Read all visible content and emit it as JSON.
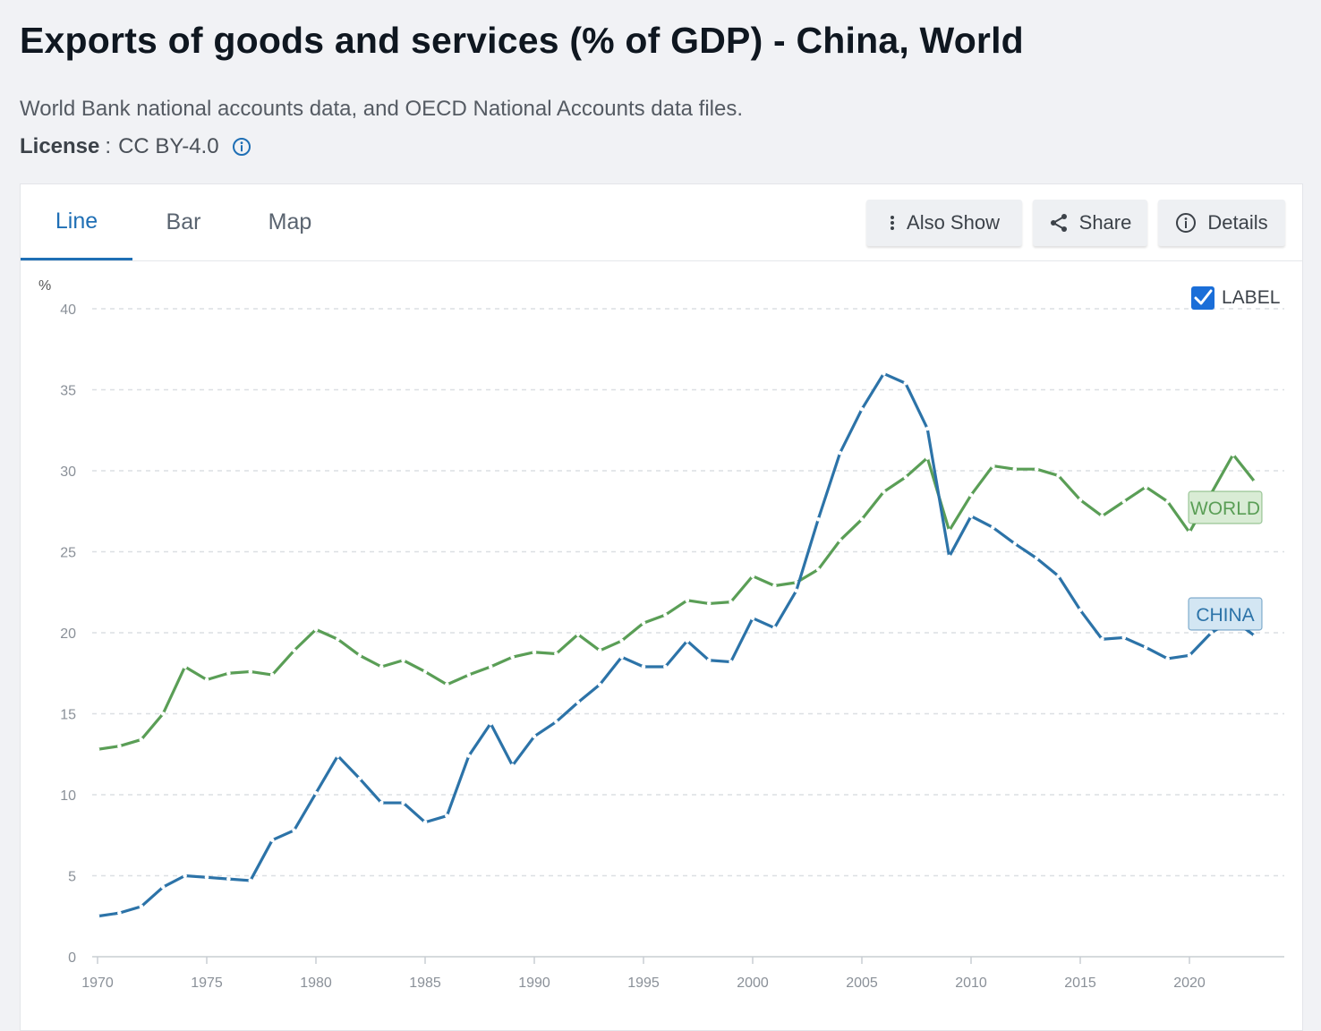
{
  "header": {
    "title": "Exports of goods and services (% of GDP) - China, World",
    "source": "World Bank national accounts data, and OECD National Accounts data files.",
    "license_key": "License",
    "license_sep": ":",
    "license_value": "CC BY-4.0"
  },
  "tabs": [
    {
      "label": "Line",
      "active": true
    },
    {
      "label": "Bar",
      "active": false
    },
    {
      "label": "Map",
      "active": false
    }
  ],
  "toolbar": {
    "also_show": "Also Show",
    "share": "Share",
    "details": "Details"
  },
  "label_toggle": {
    "text": "LABEL",
    "checked": true
  },
  "chart_data": {
    "type": "line",
    "ylabel": "%",
    "ylim": [
      0,
      40
    ],
    "yticks": [
      0,
      5,
      10,
      15,
      20,
      25,
      30,
      35,
      40
    ],
    "xticks": [
      1970,
      1975,
      1980,
      1985,
      1990,
      1995,
      2000,
      2005,
      2010,
      2015,
      2020
    ],
    "grid": "horizontal dashed",
    "x": [
      1970,
      1971,
      1972,
      1973,
      1974,
      1975,
      1976,
      1977,
      1978,
      1979,
      1980,
      1981,
      1982,
      1983,
      1984,
      1985,
      1986,
      1987,
      1988,
      1989,
      1990,
      1991,
      1992,
      1993,
      1994,
      1995,
      1996,
      1997,
      1998,
      1999,
      2000,
      2001,
      2002,
      2003,
      2004,
      2005,
      2006,
      2007,
      2008,
      2009,
      2010,
      2011,
      2012,
      2013,
      2014,
      2015,
      2016,
      2017,
      2018,
      2019,
      2020,
      2021,
      2022,
      2023
    ],
    "series": [
      {
        "name": "CHINA",
        "color": "#2c73a8",
        "tag_fill": "#d3e6f3",
        "values": [
          2.5,
          2.7,
          3.1,
          4.3,
          5.0,
          4.9,
          4.8,
          4.7,
          7.2,
          7.8,
          10.1,
          12.4,
          11.0,
          9.5,
          9.5,
          8.3,
          8.7,
          12.4,
          14.4,
          11.8,
          13.6,
          14.5,
          15.7,
          16.8,
          18.5,
          17.9,
          17.9,
          19.5,
          18.3,
          18.2,
          20.9,
          20.3,
          22.6,
          27.0,
          31.1,
          33.8,
          36.0,
          35.4,
          32.6,
          24.7,
          27.2,
          26.5,
          25.5,
          24.6,
          23.5,
          21.4,
          19.6,
          19.7,
          19.1,
          18.4,
          18.6,
          20.0,
          20.8,
          19.8
        ]
      },
      {
        "name": "WORLD",
        "color": "#5a9e56",
        "tag_fill": "#d9ecd5",
        "values": [
          12.8,
          13.0,
          13.4,
          15.0,
          17.9,
          17.1,
          17.5,
          17.6,
          17.4,
          18.9,
          20.2,
          19.6,
          18.6,
          17.9,
          18.3,
          17.6,
          16.8,
          17.4,
          17.9,
          18.5,
          18.8,
          18.7,
          19.9,
          18.9,
          19.5,
          20.6,
          21.1,
          22.0,
          21.8,
          21.9,
          23.5,
          22.9,
          23.1,
          23.9,
          25.7,
          27.0,
          28.7,
          29.6,
          30.8,
          26.3,
          28.5,
          30.3,
          30.1,
          30.1,
          29.7,
          28.2,
          27.2,
          28.1,
          29.0,
          28.1,
          26.2,
          28.6,
          31.0,
          29.3
        ]
      }
    ]
  }
}
